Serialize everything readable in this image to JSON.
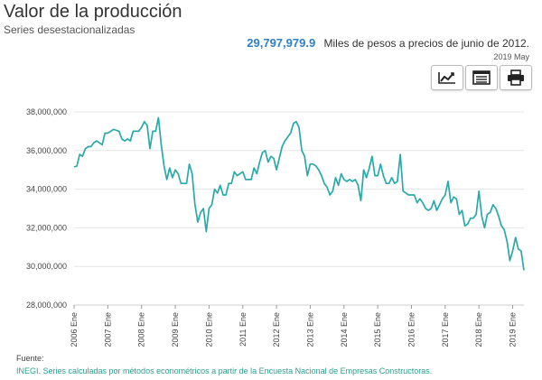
{
  "header": {
    "title": "Valor de la producción",
    "subtitle": "Series desestacionalizadas",
    "latest_value": "29,797,979.9",
    "unit_text": "Miles de pesos a precios de junio de 2012.",
    "latest_period": "2019 May"
  },
  "toolbar": {
    "chart_button_icon": "line-chart-icon",
    "table_button_icon": "table-icon",
    "print_button_icon": "print-icon"
  },
  "footer": {
    "source_label": "Fuente:",
    "source_text": "INEGI. Series calculadas por métodos econométricos a partir de la Encuesta Nacional de Empresas Constructoras."
  },
  "colors": {
    "line": "#2aa9a9",
    "headline_value": "#2f80c4",
    "source_text": "#2a9d8f"
  },
  "chart_data": {
    "type": "line",
    "title": "",
    "xlabel": "",
    "ylabel": "",
    "ylim": [
      28000000,
      38000000
    ],
    "y_ticks": [
      28000000,
      30000000,
      32000000,
      34000000,
      36000000,
      38000000
    ],
    "y_tick_labels": [
      "28,000,000",
      "30,000,000",
      "32,000,000",
      "34,000,000",
      "36,000,000",
      "38,000,000"
    ],
    "x_tick_labels": [
      "2006 Ene",
      "2007 Ene",
      "2008 Ene",
      "2009 Ene",
      "2010 Ene",
      "2011 Ene",
      "2012 Ene",
      "2013 Ene",
      "2014 Ene",
      "2015 Ene",
      "2016 Ene",
      "2017 Ene",
      "2018 Ene",
      "2019 Ene"
    ],
    "x_start": "2006-01",
    "x_end": "2019-05",
    "grid": "horizontal",
    "series": [
      {
        "color": "#2aa9a9",
        "points": [
          [
            "2006-01",
            35150000
          ],
          [
            "2006-02",
            35200000
          ],
          [
            "2006-03",
            35800000
          ],
          [
            "2006-04",
            35700000
          ],
          [
            "2006-05",
            36100000
          ],
          [
            "2006-06",
            36200000
          ],
          [
            "2006-07",
            36200000
          ],
          [
            "2006-08",
            36400000
          ],
          [
            "2006-09",
            36500000
          ],
          [
            "2006-10",
            36400000
          ],
          [
            "2006-11",
            36300000
          ],
          [
            "2006-12",
            36900000
          ],
          [
            "2007-01",
            36900000
          ],
          [
            "2007-02",
            37000000
          ],
          [
            "2007-03",
            37100000
          ],
          [
            "2007-04",
            37050000
          ],
          [
            "2007-05",
            37000000
          ],
          [
            "2007-06",
            36600000
          ],
          [
            "2007-07",
            36500000
          ],
          [
            "2007-08",
            36600000
          ],
          [
            "2007-09",
            36500000
          ],
          [
            "2007-10",
            37000000
          ],
          [
            "2007-11",
            37000000
          ],
          [
            "2007-12",
            37000000
          ],
          [
            "2008-01",
            37200000
          ],
          [
            "2008-02",
            37500000
          ],
          [
            "2008-03",
            37300000
          ],
          [
            "2008-04",
            36100000
          ],
          [
            "2008-05",
            37000000
          ],
          [
            "2008-06",
            37000000
          ],
          [
            "2008-07",
            37700000
          ],
          [
            "2008-08",
            36300000
          ],
          [
            "2008-09",
            35200000
          ],
          [
            "2008-10",
            34500000
          ],
          [
            "2008-11",
            35100000
          ],
          [
            "2008-12",
            34600000
          ],
          [
            "2009-01",
            35000000
          ],
          [
            "2009-02",
            34800000
          ],
          [
            "2009-03",
            34300000
          ],
          [
            "2009-04",
            34300000
          ],
          [
            "2009-05",
            34300000
          ],
          [
            "2009-06",
            35300000
          ],
          [
            "2009-07",
            34800000
          ],
          [
            "2009-08",
            33200000
          ],
          [
            "2009-09",
            32300000
          ],
          [
            "2009-10",
            32800000
          ],
          [
            "2009-11",
            33000000
          ],
          [
            "2009-12",
            31800000
          ],
          [
            "2010-01",
            33000000
          ],
          [
            "2010-02",
            33200000
          ],
          [
            "2010-03",
            34000000
          ],
          [
            "2010-04",
            33800000
          ],
          [
            "2010-05",
            34200000
          ],
          [
            "2010-06",
            33700000
          ],
          [
            "2010-07",
            33700000
          ],
          [
            "2010-08",
            34300000
          ],
          [
            "2010-09",
            34300000
          ],
          [
            "2010-10",
            34900000
          ],
          [
            "2010-11",
            34700000
          ],
          [
            "2010-12",
            34800000
          ],
          [
            "2011-01",
            34900000
          ],
          [
            "2011-02",
            34500000
          ],
          [
            "2011-03",
            34500000
          ],
          [
            "2011-04",
            34500000
          ],
          [
            "2011-05",
            35100000
          ],
          [
            "2011-06",
            34800000
          ],
          [
            "2011-07",
            35400000
          ],
          [
            "2011-08",
            35900000
          ],
          [
            "2011-09",
            36000000
          ],
          [
            "2011-10",
            35400000
          ],
          [
            "2011-11",
            35700000
          ],
          [
            "2011-12",
            35600000
          ],
          [
            "2012-01",
            35000000
          ],
          [
            "2012-02",
            35600000
          ],
          [
            "2012-03",
            36200000
          ],
          [
            "2012-04",
            36500000
          ],
          [
            "2012-05",
            36700000
          ],
          [
            "2012-06",
            36900000
          ],
          [
            "2012-07",
            37400000
          ],
          [
            "2012-08",
            37500000
          ],
          [
            "2012-09",
            37200000
          ],
          [
            "2012-10",
            36000000
          ],
          [
            "2012-11",
            35700000
          ],
          [
            "2012-12",
            34700000
          ],
          [
            "2013-01",
            35300000
          ],
          [
            "2013-02",
            35300000
          ],
          [
            "2013-03",
            35200000
          ],
          [
            "2013-04",
            35000000
          ],
          [
            "2013-05",
            34700000
          ],
          [
            "2013-06",
            34300000
          ],
          [
            "2013-07",
            34100000
          ],
          [
            "2013-08",
            33700000
          ],
          [
            "2013-09",
            33900000
          ],
          [
            "2013-10",
            34600000
          ],
          [
            "2013-11",
            34200000
          ],
          [
            "2013-12",
            34800000
          ],
          [
            "2014-01",
            34500000
          ],
          [
            "2014-02",
            34400000
          ],
          [
            "2014-03",
            34500000
          ],
          [
            "2014-04",
            34400000
          ],
          [
            "2014-05",
            34500000
          ],
          [
            "2014-06",
            34200000
          ],
          [
            "2014-07",
            33400000
          ],
          [
            "2014-08",
            35000000
          ],
          [
            "2014-09",
            34600000
          ],
          [
            "2014-10",
            35100000
          ],
          [
            "2014-11",
            35700000
          ],
          [
            "2014-12",
            34700000
          ],
          [
            "2015-01",
            34700000
          ],
          [
            "2015-02",
            35300000
          ],
          [
            "2015-03",
            34700000
          ],
          [
            "2015-04",
            34300000
          ],
          [
            "2015-05",
            34300000
          ],
          [
            "2015-06",
            34600000
          ],
          [
            "2015-07",
            34300000
          ],
          [
            "2015-08",
            34400000
          ],
          [
            "2015-09",
            35800000
          ],
          [
            "2015-10",
            33900000
          ],
          [
            "2015-11",
            33800000
          ],
          [
            "2015-12",
            33700000
          ],
          [
            "2016-01",
            33700000
          ],
          [
            "2016-02",
            33700000
          ],
          [
            "2016-03",
            33300000
          ],
          [
            "2016-04",
            33500000
          ],
          [
            "2016-05",
            33300000
          ],
          [
            "2016-06",
            33000000
          ],
          [
            "2016-07",
            32900000
          ],
          [
            "2016-08",
            33000000
          ],
          [
            "2016-09",
            33400000
          ],
          [
            "2016-10",
            32900000
          ],
          [
            "2016-11",
            33200000
          ],
          [
            "2016-12",
            33500000
          ],
          [
            "2017-01",
            33700000
          ],
          [
            "2017-02",
            34400000
          ],
          [
            "2017-03",
            33300000
          ],
          [
            "2017-04",
            33600000
          ],
          [
            "2017-05",
            33500000
          ],
          [
            "2017-06",
            32700000
          ],
          [
            "2017-07",
            32900000
          ],
          [
            "2017-08",
            32100000
          ],
          [
            "2017-09",
            32200000
          ],
          [
            "2017-10",
            32500000
          ],
          [
            "2017-11",
            32500000
          ],
          [
            "2017-12",
            32700000
          ],
          [
            "2018-01",
            33900000
          ],
          [
            "2018-02",
            32600000
          ],
          [
            "2018-03",
            32000000
          ],
          [
            "2018-04",
            32700000
          ],
          [
            "2018-05",
            32800000
          ],
          [
            "2018-06",
            33200000
          ],
          [
            "2018-07",
            33000000
          ],
          [
            "2018-08",
            32600000
          ],
          [
            "2018-09",
            32100000
          ],
          [
            "2018-10",
            31900000
          ],
          [
            "2018-11",
            31300000
          ],
          [
            "2018-12",
            30300000
          ],
          [
            "2019-01",
            30800000
          ],
          [
            "2019-02",
            31500000
          ],
          [
            "2019-03",
            30900000
          ],
          [
            "2019-04",
            30800000
          ],
          [
            "2019-05",
            29797980
          ]
        ]
      }
    ]
  }
}
